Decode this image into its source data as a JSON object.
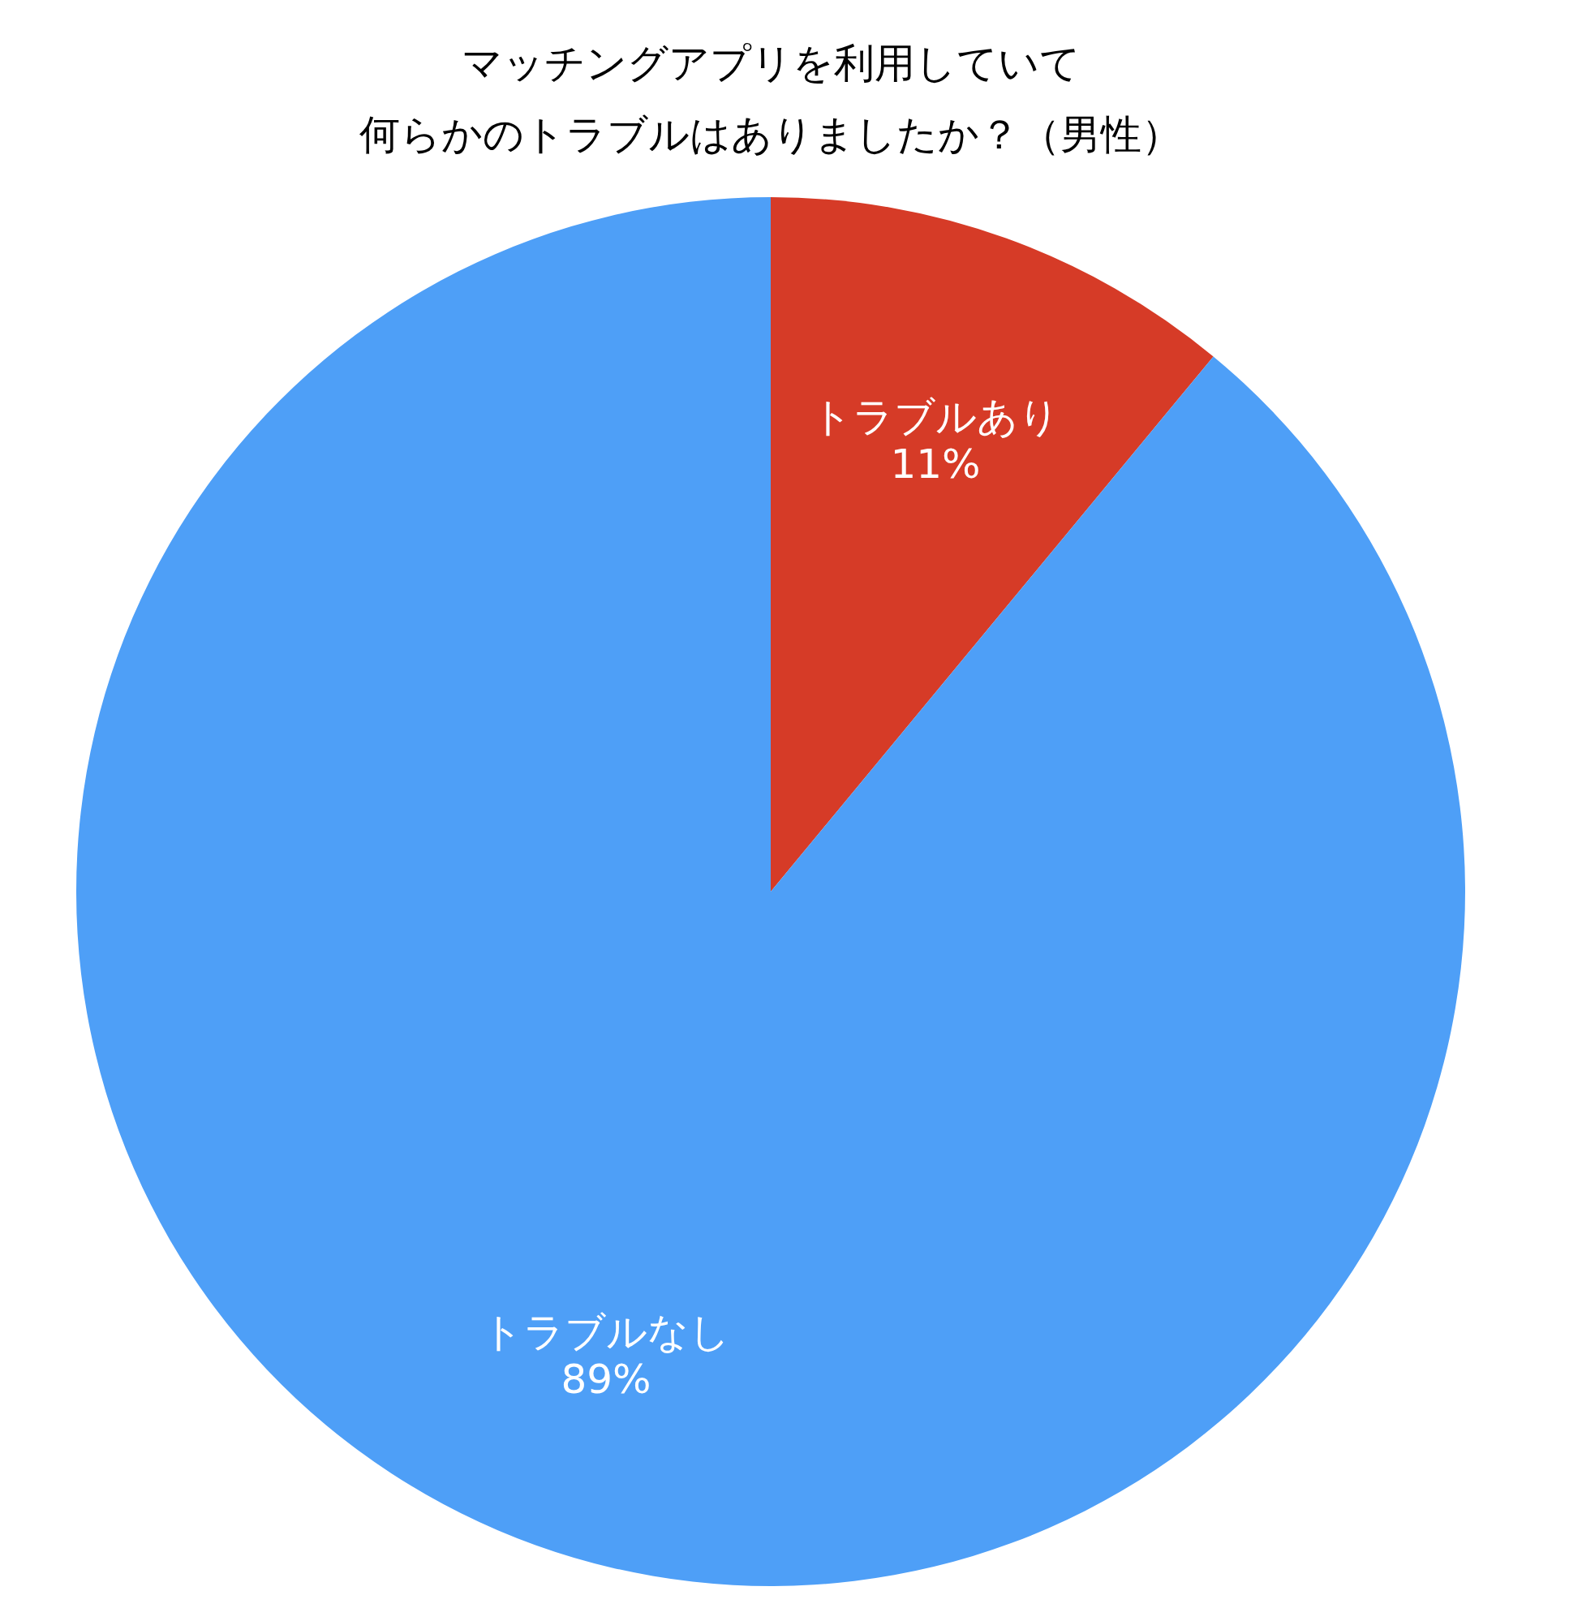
{
  "chart_data": {
    "type": "pie",
    "title": "マッチングアプリを利用していて",
    "subtitle": "何らかのトラブルはありましたか？（男性）",
    "categories": [
      "トラブルあり",
      "トラブルなし"
    ],
    "values": [
      11,
      89
    ],
    "colors": [
      "#d63b27",
      "#4e9ff7"
    ],
    "value_labels": [
      "11%",
      "89%"
    ],
    "legend": false
  }
}
